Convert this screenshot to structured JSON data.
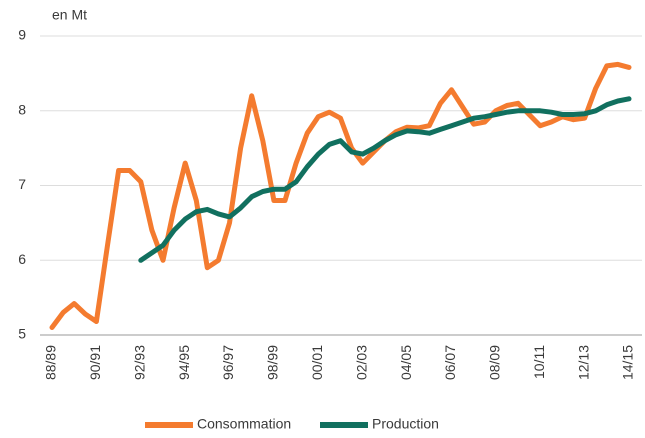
{
  "chart_data": {
    "type": "line",
    "unit_label": "en Mt",
    "categories": [
      "88/89",
      null,
      null,
      null,
      "90/91",
      null,
      null,
      null,
      "92/93",
      null,
      null,
      null,
      "94/95",
      null,
      null,
      null,
      "96/97",
      null,
      null,
      null,
      "98/99",
      null,
      null,
      null,
      "00/01",
      null,
      null,
      null,
      "02/03",
      null,
      null,
      null,
      "04/05",
      null,
      null,
      null,
      "06/07",
      null,
      null,
      null,
      "08/09",
      null,
      null,
      null,
      "10/11",
      null,
      null,
      null,
      "12/13",
      null,
      null,
      null,
      "14/15"
    ],
    "series": [
      {
        "name": "Consommation",
        "color": "#f47b2f",
        "values": [
          5.1,
          5.3,
          5.42,
          5.28,
          5.18,
          6.2,
          7.2,
          7.2,
          7.05,
          6.4,
          6.0,
          6.7,
          7.3,
          6.8,
          5.9,
          6.0,
          6.5,
          7.5,
          8.2,
          7.6,
          6.8,
          6.8,
          7.3,
          7.7,
          7.92,
          7.98,
          7.9,
          7.5,
          7.3,
          7.45,
          7.6,
          7.72,
          7.78,
          7.77,
          7.8,
          8.1,
          8.28,
          8.05,
          7.82,
          7.85,
          8.0,
          8.07,
          8.1,
          7.95,
          7.8,
          7.85,
          7.92,
          7.88,
          7.9,
          8.3,
          8.6,
          8.62,
          8.58
        ]
      },
      {
        "name": "Production",
        "color": "#11705f",
        "values": [
          null,
          null,
          null,
          null,
          null,
          null,
          null,
          null,
          6.0,
          6.1,
          6.2,
          6.4,
          6.55,
          6.65,
          6.68,
          6.62,
          6.58,
          6.7,
          6.85,
          6.92,
          6.95,
          6.95,
          7.05,
          7.25,
          7.42,
          7.55,
          7.6,
          7.45,
          7.42,
          7.5,
          7.6,
          7.68,
          7.73,
          7.72,
          7.7,
          7.75,
          7.8,
          7.85,
          7.9,
          7.92,
          7.95,
          7.98,
          8.0,
          8.0,
          8.0,
          7.98,
          7.95,
          7.95,
          7.96,
          8.0,
          8.08,
          8.13,
          8.16
        ]
      }
    ],
    "ylim": [
      5,
      9
    ],
    "yticks": [
      5,
      6,
      7,
      8,
      9
    ],
    "grid": true
  }
}
